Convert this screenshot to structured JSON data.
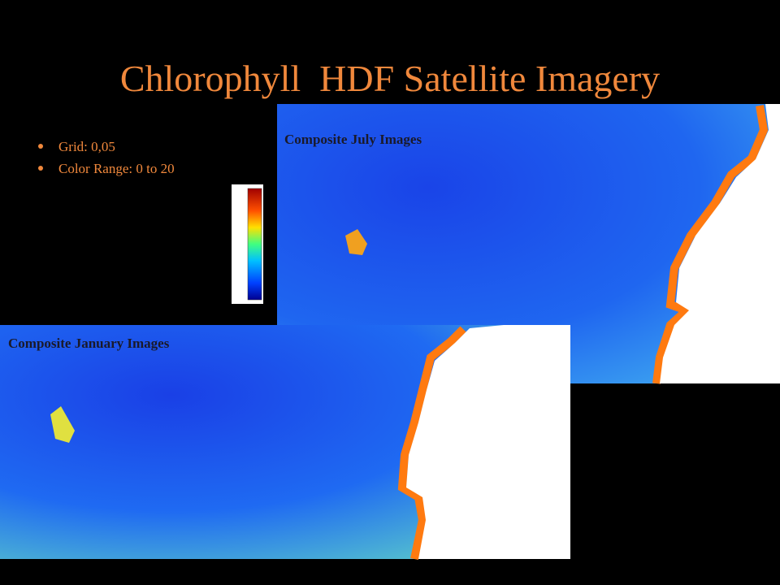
{
  "title": "Chlorophyll  HDF Satellite Imagery",
  "bullets": [
    "Grid: 0,05",
    "Color Range: 0 to 20"
  ],
  "images": [
    {
      "caption": "Composite July Images"
    },
    {
      "caption": "Composite January Images"
    }
  ]
}
